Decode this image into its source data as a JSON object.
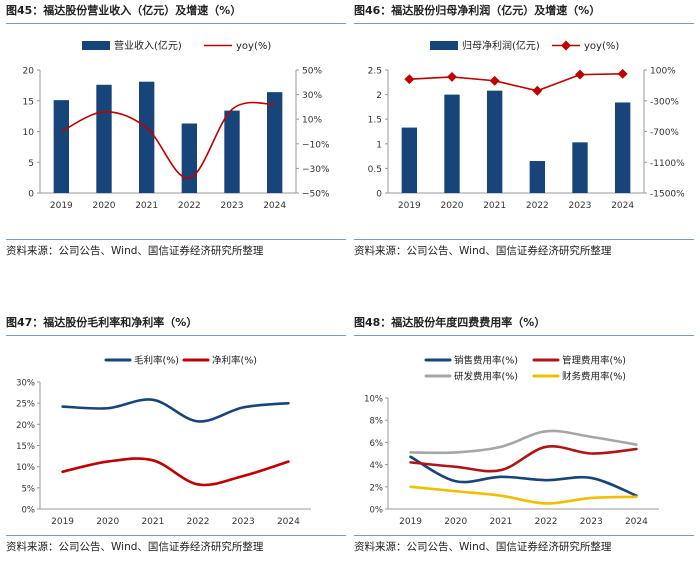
{
  "source_text": "资料来源：公司公告、Wind、国信证券经济研究所整理",
  "colors": {
    "bar": "#17457a",
    "revenue_yoy": "#c00000",
    "profit_yoy": "#c00000",
    "gross_margin": "#17457a",
    "net_margin": "#c00000",
    "selling": "#17457a",
    "admin": "#b01515",
    "rnd": "#a6a6a6",
    "finance": "#f0c000"
  },
  "chart_data": [
    {
      "id": "fig45",
      "type": "bar",
      "title": "图45：福达股份营业收入（亿元）及增速（%）",
      "categories": [
        "2019",
        "2020",
        "2021",
        "2022",
        "2023",
        "2024"
      ],
      "series": [
        {
          "name": "营业收入(亿元)",
          "type": "bar",
          "axis": "left",
          "values": [
            15.1,
            17.6,
            18.1,
            11.3,
            13.4,
            16.4
          ]
        },
        {
          "name": "yoy(%)",
          "type": "line",
          "axis": "right",
          "values": [
            0,
            16,
            3,
            -38,
            18,
            22
          ]
        }
      ],
      "y_left": {
        "min": 0,
        "max": 20,
        "ticks": [
          "0",
          "5",
          "10",
          "15",
          "20"
        ]
      },
      "y_right": {
        "min": -50,
        "max": 50,
        "ticks": [
          "50%",
          "30%",
          "10%",
          "−10%",
          "−30%",
          "−50%"
        ]
      }
    },
    {
      "id": "fig46",
      "type": "bar",
      "title": "图46：福达股份归母净利润（亿元）及增速（%）",
      "categories": [
        "2019",
        "2020",
        "2021",
        "2022",
        "2023",
        "2024"
      ],
      "series": [
        {
          "name": "归母净利润(亿元)",
          "type": "bar",
          "axis": "left",
          "values": [
            1.33,
            2.0,
            2.08,
            0.65,
            1.03,
            1.84
          ]
        },
        {
          "name": "yoy(%)",
          "type": "line",
          "axis": "right",
          "values": [
            -20,
            10,
            -40,
            -170,
            40,
            50
          ]
        }
      ],
      "y_left": {
        "min": 0,
        "max": 2.5,
        "ticks": [
          "0",
          "0.5",
          "1",
          "1.5",
          "2",
          "2.5"
        ]
      },
      "y_right": {
        "min": -1500,
        "max": 100,
        "ticks": [
          "100%",
          "-300%",
          "-700%",
          "-1100%",
          "-1500%"
        ]
      }
    },
    {
      "id": "fig47",
      "type": "line",
      "title": "图47：福达股份毛利率和净利率（%）",
      "categories": [
        "2019",
        "2020",
        "2021",
        "2022",
        "2023",
        "2024"
      ],
      "series": [
        {
          "name": "毛利率(%)",
          "values": [
            24.2,
            23.8,
            25.8,
            20.7,
            24.0,
            25.0
          ]
        },
        {
          "name": "净利率(%)",
          "values": [
            8.8,
            11.2,
            11.5,
            5.8,
            7.8,
            11.2
          ]
        }
      ],
      "y": {
        "min": 0,
        "max": 30,
        "ticks": [
          "0%",
          "5%",
          "10%",
          "15%",
          "20%",
          "25%",
          "30%"
        ]
      }
    },
    {
      "id": "fig48",
      "type": "line",
      "title": "图48：福达股份年度四费费用率（%）",
      "categories": [
        "2019",
        "2020",
        "2021",
        "2022",
        "2023",
        "2024"
      ],
      "series": [
        {
          "name": "销售费用率(%)",
          "values": [
            4.7,
            2.5,
            2.9,
            2.6,
            2.8,
            1.2
          ]
        },
        {
          "name": "管理费用率(%)",
          "values": [
            4.2,
            3.8,
            3.5,
            5.6,
            5.0,
            5.4
          ]
        },
        {
          "name": "研发费用率(%)",
          "values": [
            5.1,
            5.1,
            5.6,
            7.0,
            6.5,
            5.8
          ]
        },
        {
          "name": "财务费用率(%)",
          "values": [
            2.0,
            1.6,
            1.2,
            0.5,
            1.0,
            1.1
          ]
        }
      ],
      "y": {
        "min": 0,
        "max": 10,
        "ticks": [
          "0%",
          "2%",
          "4%",
          "6%",
          "8%",
          "10%"
        ]
      }
    }
  ]
}
